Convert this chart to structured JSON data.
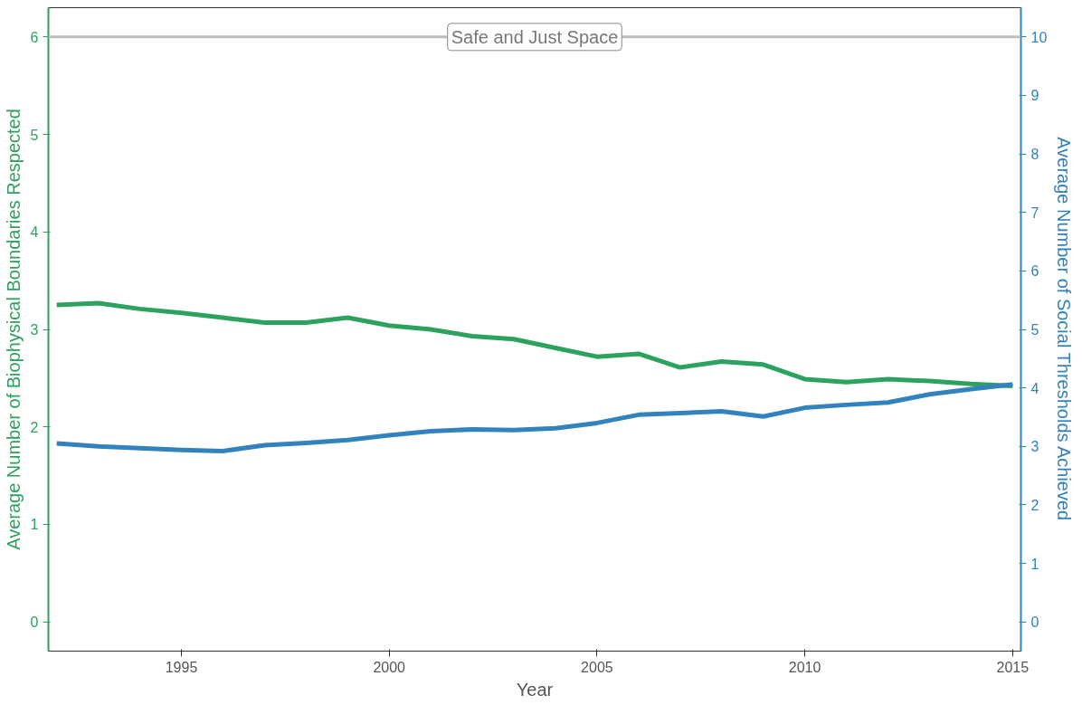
{
  "chart_data": {
    "type": "line",
    "xlabel": "Year",
    "ylabel": "Average Number of Biophysical Boundaries Respected",
    "y2label": "Average Number of Social Thresholds Achieved",
    "x": [
      1992,
      1993,
      1994,
      1995,
      1996,
      1997,
      1998,
      1999,
      2000,
      2001,
      2002,
      2003,
      2004,
      2005,
      2006,
      2007,
      2008,
      2009,
      2010,
      2011,
      2012,
      2013,
      2014,
      2015
    ],
    "series": [
      {
        "color": "#2ca25f",
        "values": [
          3.25,
          3.27,
          3.21,
          3.17,
          3.12,
          3.07,
          3.07,
          3.12,
          3.04,
          3.0,
          2.93,
          2.9,
          2.81,
          2.72,
          2.75,
          2.61,
          2.67,
          2.64,
          2.49,
          2.46,
          2.49,
          2.47,
          2.44,
          2.42
        ]
      },
      {
        "color": "#3182bd",
        "axis": "y2",
        "values": [
          3.05,
          3.0,
          2.97,
          2.94,
          2.92,
          3.02,
          3.06,
          3.11,
          3.19,
          3.26,
          3.29,
          3.28,
          3.31,
          3.4,
          3.54,
          3.57,
          3.6,
          3.51,
          3.66,
          3.71,
          3.75,
          3.89,
          3.98,
          4.06
        ]
      }
    ],
    "xlim": [
      1991.8,
      2015.2
    ],
    "xticks": [
      1995,
      2000,
      2005,
      2010,
      2015
    ],
    "ylim": [
      -0.3,
      6.3
    ],
    "yticks": [
      0,
      1,
      2,
      3,
      4,
      5,
      6
    ],
    "y2lim": [
      -0.5,
      10.5
    ],
    "y2ticks": [
      0,
      1,
      2,
      3,
      4,
      5,
      6,
      7,
      8,
      9,
      10
    ],
    "ref_lines": [
      {
        "axis": "y",
        "value": 6,
        "label": "Safe and Just Space",
        "color": "#bdbdbd"
      }
    ],
    "grid": false,
    "line_style": "solid",
    "marker": "none"
  }
}
